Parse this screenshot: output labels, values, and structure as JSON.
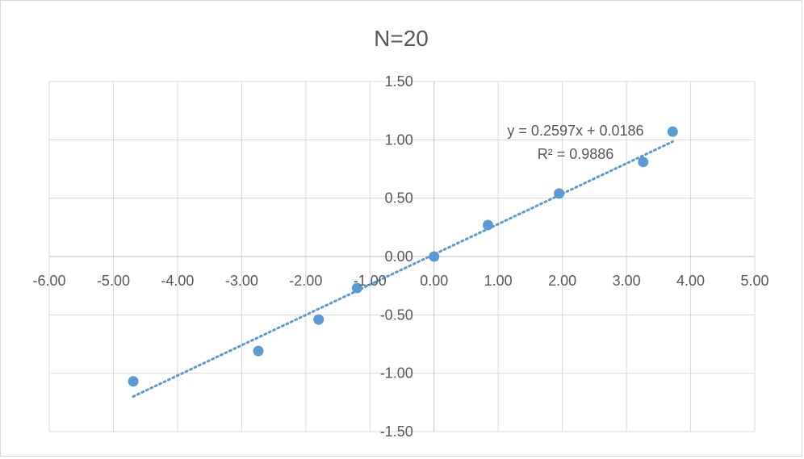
{
  "chart_data": {
    "type": "scatter",
    "title": "N=20",
    "xlabel": "",
    "ylabel": "",
    "xlim": [
      -6,
      5
    ],
    "ylim": [
      -1.5,
      1.5
    ],
    "x_ticks": [
      "-6.00",
      "-5.00",
      "-4.00",
      "-3.00",
      "-2.00",
      "-1.00",
      "0.00",
      "1.00",
      "2.00",
      "3.00",
      "4.00",
      "5.00"
    ],
    "y_ticks": [
      "1.50",
      "1.00",
      "0.50",
      "0.00",
      "-0.50",
      "-1.00",
      "-1.50"
    ],
    "x_tick_values": [
      -6,
      -5,
      -4,
      -3,
      -2,
      -1,
      0,
      1,
      2,
      3,
      4,
      5
    ],
    "y_tick_values": [
      1.5,
      1.0,
      0.5,
      0.0,
      -0.5,
      -1.0,
      -1.5
    ],
    "grid": true,
    "legend": "none",
    "series": [
      {
        "name": "N=20",
        "color": "#5b9bd5",
        "points": [
          {
            "x": -4.69,
            "y": -1.07
          },
          {
            "x": -2.74,
            "y": -0.81
          },
          {
            "x": -1.8,
            "y": -0.54
          },
          {
            "x": -1.2,
            "y": -0.27
          },
          {
            "x": 0.0,
            "y": 0.0
          },
          {
            "x": 0.84,
            "y": 0.27
          },
          {
            "x": 1.95,
            "y": 0.54
          },
          {
            "x": 3.26,
            "y": 0.81
          },
          {
            "x": 3.72,
            "y": 1.07
          }
        ]
      }
    ],
    "trendline": {
      "type": "linear",
      "slope": 0.2597,
      "intercept": 0.0186,
      "x_range": [
        -4.69,
        3.72
      ],
      "equation_label": "y = 0.2597x + 0.0186",
      "r2_label": "R² = 0.9886",
      "color": "#5b9bd5",
      "style": "dotted"
    }
  }
}
